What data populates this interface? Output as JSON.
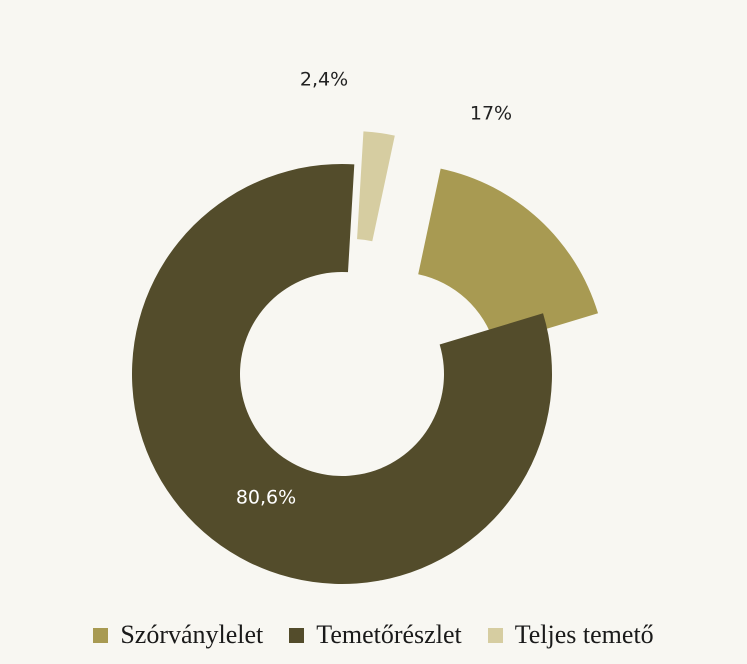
{
  "colors": {
    "background": "#f8f7f2",
    "label_dark": "#222222",
    "label_light": "#ffffff"
  },
  "chart_data": {
    "type": "pie",
    "variant": "donut-exploded",
    "title": "",
    "slices": [
      {
        "name": "Szórványlelet",
        "value": 17,
        "label": "17%",
        "color": "#a89a52"
      },
      {
        "name": "Temetőrészlet",
        "value": 80.6,
        "label": "80,6%",
        "color": "#534c2b"
      },
      {
        "name": "Teljes temető",
        "value": 2.4,
        "label": "2,4%",
        "color": "#d6cda1"
      }
    ],
    "legend": {
      "position": "bottom"
    }
  }
}
